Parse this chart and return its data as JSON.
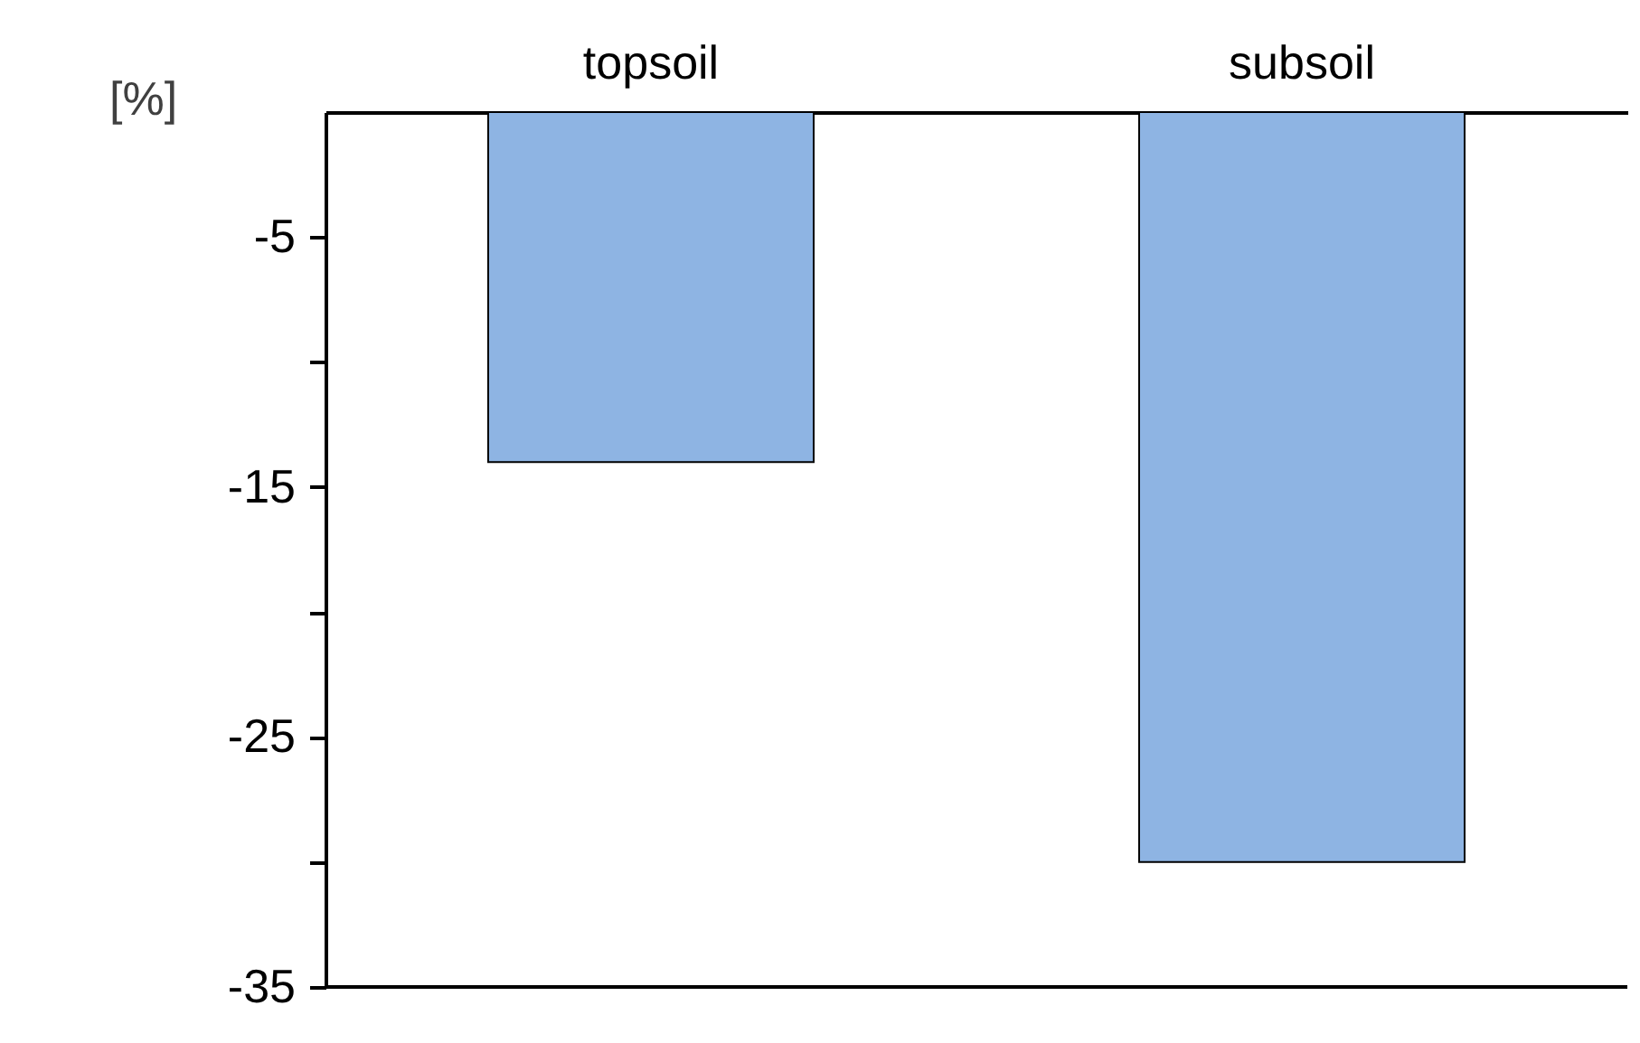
{
  "chart_data": {
    "type": "bar",
    "ylabel": "[%]",
    "categories": [
      "topsoil",
      "subsoil"
    ],
    "values": [
      -14,
      -30
    ],
    "color": "#8eb4e3",
    "ylim": [
      -35,
      0
    ],
    "yticks": [
      {
        "value": -5,
        "label": "-5"
      },
      {
        "value": -10,
        "label": null
      },
      {
        "value": -15,
        "label": "-15"
      },
      {
        "value": -20,
        "label": null
      },
      {
        "value": -25,
        "label": "-25"
      },
      {
        "value": -30,
        "label": null
      },
      {
        "value": -35,
        "label": "-35"
      }
    ],
    "grid": false
  }
}
